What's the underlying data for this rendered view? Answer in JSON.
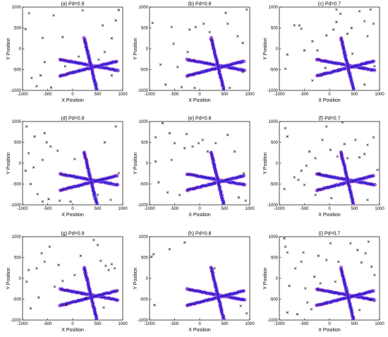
{
  "figure": {
    "panels_layout": "3x3 grid",
    "marker_legend": {
      "clutter": "x",
      "target_track": "o"
    },
    "colors": {
      "clutter": "#000000",
      "estimate": "#1a1acc",
      "estimate_edge": "#4a2bd8",
      "truth": "#cc1111",
      "uncertainty": "#ff66cc"
    }
  },
  "chart_data": [
    {
      "id": "a",
      "type": "scatter",
      "title": "(a) Pd=0.9",
      "xlabel": "X Position",
      "ylabel": "Y Position",
      "xlim": [
        -1000,
        1000
      ],
      "ylim": [
        -1000,
        1000
      ],
      "xticks": [
        "-1000",
        "-500",
        "0",
        "500",
        "1000"
      ],
      "yticks": [
        "1000",
        "500",
        "0",
        "-500",
        "-1000"
      ],
      "clutter": [
        [
          -870,
          850
        ],
        [
          -940,
          470
        ],
        [
          -600,
          260
        ],
        [
          -380,
          800
        ],
        [
          -560,
          -320
        ],
        [
          -200,
          280
        ],
        [
          -720,
          -900
        ],
        [
          -430,
          -930
        ],
        [
          -640,
          -640
        ],
        [
          120,
          -190
        ],
        [
          600,
          560
        ],
        [
          780,
          250
        ],
        [
          860,
          680
        ],
        [
          640,
          -80
        ],
        [
          920,
          930
        ],
        [
          200,
          920
        ],
        [
          520,
          -260
        ],
        [
          780,
          -640
        ],
        [
          -150,
          -420
        ],
        [
          -820,
          -700
        ]
      ]
    },
    {
      "id": "b",
      "type": "scatter",
      "title": "(b) Pd=0.8",
      "xlabel": "X Position",
      "ylabel": "Y Position",
      "xlim": [
        -1000,
        1000
      ],
      "ylim": [
        -1000,
        1000
      ],
      "xticks": [
        "-1000",
        "-500",
        "0",
        "500",
        "1000"
      ],
      "yticks": [
        "1000",
        "500",
        "0",
        "-500",
        "-1000"
      ],
      "clutter": [
        [
          -940,
          620
        ],
        [
          -560,
          520
        ],
        [
          -440,
          -440
        ],
        [
          -200,
          460
        ],
        [
          -80,
          520
        ],
        [
          80,
          600
        ],
        [
          200,
          400
        ],
        [
          520,
          860
        ],
        [
          560,
          600
        ],
        [
          760,
          300
        ],
        [
          940,
          940
        ],
        [
          860,
          140
        ],
        [
          -680,
          -860
        ],
        [
          -360,
          -920
        ],
        [
          -100,
          -940
        ],
        [
          -780,
          -380
        ],
        [
          860,
          -560
        ],
        [
          600,
          -940
        ],
        [
          -240,
          -80
        ],
        [
          -520,
          120
        ]
      ]
    },
    {
      "id": "c",
      "type": "scatter",
      "title": "(c) Pd=0.7",
      "xlabel": "X Position",
      "ylabel": "Y Position",
      "xlim": [
        -1000,
        1000
      ],
      "ylim": [
        -1000,
        1000
      ],
      "xticks": [
        "-1000",
        "-500",
        "0",
        "500",
        "1000"
      ],
      "yticks": [
        "1000",
        "500",
        "0",
        "-500",
        "-1000"
      ],
      "clutter": [
        [
          -880,
          -480
        ],
        [
          -700,
          560
        ],
        [
          -600,
          560
        ],
        [
          -560,
          480
        ],
        [
          -500,
          -40
        ],
        [
          -340,
          180
        ],
        [
          -240,
          -40
        ],
        [
          -80,
          -460
        ],
        [
          -60,
          320
        ],
        [
          80,
          460
        ],
        [
          140,
          640
        ],
        [
          140,
          940
        ],
        [
          220,
          840
        ],
        [
          360,
          360
        ],
        [
          440,
          500
        ],
        [
          600,
          900
        ],
        [
          700,
          660
        ],
        [
          760,
          300
        ],
        [
          880,
          600
        ],
        [
          820,
          940
        ],
        [
          900,
          -420
        ],
        [
          700,
          -860
        ],
        [
          -340,
          -760
        ],
        [
          -840,
          -140
        ],
        [
          460,
          -120
        ]
      ]
    },
    {
      "id": "d",
      "type": "scatter",
      "title": "(d) Pd=0.9",
      "xlabel": "X Position",
      "ylabel": "Y Position",
      "xlim": [
        -1000,
        1000
      ],
      "ylim": [
        -1000,
        1000
      ],
      "xticks": [
        "-1000",
        "-500",
        "0",
        "500",
        "1000"
      ],
      "yticks": [
        "1000",
        "500",
        "0",
        "-500",
        "-1000"
      ],
      "clutter": [
        [
          -920,
          880
        ],
        [
          -760,
          640
        ],
        [
          -560,
          720
        ],
        [
          -520,
          500
        ],
        [
          -440,
          400
        ],
        [
          -600,
          80
        ],
        [
          -780,
          -100
        ],
        [
          -940,
          -180
        ],
        [
          -840,
          -500
        ],
        [
          -700,
          -740
        ],
        [
          -600,
          -920
        ],
        [
          -480,
          -860
        ],
        [
          -260,
          -900
        ],
        [
          -40,
          -920
        ],
        [
          -300,
          300
        ],
        [
          40,
          100
        ],
        [
          640,
          500
        ],
        [
          860,
          880
        ],
        [
          920,
          -240
        ],
        [
          500,
          -760
        ],
        [
          760,
          -880
        ],
        [
          -880,
          240
        ]
      ]
    },
    {
      "id": "e",
      "type": "scatter",
      "title": "(e) Pd=0.8",
      "xlabel": "X Position",
      "ylabel": "Y Position",
      "xlim": [
        -1000,
        1000
      ],
      "ylim": [
        -1000,
        1000
      ],
      "xticks": [
        "-1000",
        "-500",
        "0",
        "500",
        "1000"
      ],
      "yticks": [
        "1000",
        "500",
        "0",
        "-500",
        "-1000"
      ],
      "clutter": [
        [
          -880,
          620
        ],
        [
          -740,
          960
        ],
        [
          -600,
          720
        ],
        [
          -500,
          480
        ],
        [
          -300,
          360
        ],
        [
          -260,
          700
        ],
        [
          -140,
          400
        ],
        [
          -20,
          480
        ],
        [
          60,
          560
        ],
        [
          160,
          280
        ],
        [
          320,
          480
        ],
        [
          560,
          680
        ],
        [
          700,
          280
        ],
        [
          880,
          -240
        ],
        [
          780,
          -820
        ],
        [
          920,
          -900
        ],
        [
          -820,
          -460
        ],
        [
          -640,
          -700
        ],
        [
          -400,
          -760
        ],
        [
          -880,
          40
        ],
        [
          -560,
          80
        ]
      ]
    },
    {
      "id": "f",
      "type": "scatter",
      "title": "(f) Pd=0.7",
      "xlabel": "X Position",
      "ylabel": "Y Position",
      "xlim": [
        -1000,
        1000
      ],
      "ylim": [
        -1000,
        1000
      ],
      "xticks": [
        "-1000",
        "-500",
        "0",
        "500",
        "1000"
      ],
      "yticks": [
        "1000",
        "500",
        "0",
        "-500",
        "-1000"
      ],
      "clutter": [
        [
          -880,
          840
        ],
        [
          -840,
          640
        ],
        [
          -700,
          -340
        ],
        [
          -620,
          -400
        ],
        [
          -560,
          -180
        ],
        [
          -500,
          -520
        ],
        [
          -460,
          -60
        ],
        [
          -400,
          280
        ],
        [
          -280,
          120
        ],
        [
          -200,
          -240
        ],
        [
          -140,
          560
        ],
        [
          -60,
          880
        ],
        [
          20,
          320
        ],
        [
          160,
          160
        ],
        [
          260,
          980
        ],
        [
          300,
          460
        ],
        [
          360,
          120
        ],
        [
          520,
          560
        ],
        [
          600,
          140
        ],
        [
          700,
          220
        ],
        [
          760,
          440
        ],
        [
          880,
          620
        ],
        [
          960,
          -160
        ],
        [
          -900,
          -620
        ],
        [
          -280,
          -760
        ],
        [
          40,
          -840
        ],
        [
          760,
          -880
        ]
      ]
    },
    {
      "id": "g",
      "type": "scatter",
      "title": "(g) Pd=0.9",
      "xlabel": "X Position",
      "ylabel": "Y Position",
      "xlim": [
        -1000,
        1000
      ],
      "ylim": [
        -1000,
        1000
      ],
      "xticks": [
        "-1000",
        "-500",
        "0",
        "500",
        "1000"
      ],
      "yticks": [
        "1000",
        "500",
        "0",
        "-500",
        "-1000"
      ],
      "clutter": [
        [
          -880,
          200
        ],
        [
          -920,
          -80
        ],
        [
          -720,
          240
        ],
        [
          -680,
          -460
        ],
        [
          -620,
          600
        ],
        [
          -560,
          400
        ],
        [
          -460,
          760
        ],
        [
          -360,
          -200
        ],
        [
          -280,
          320
        ],
        [
          -200,
          -60
        ],
        [
          -120,
          -640
        ],
        [
          40,
          80
        ],
        [
          160,
          540
        ],
        [
          260,
          -480
        ],
        [
          420,
          920
        ],
        [
          500,
          800
        ],
        [
          560,
          420
        ],
        [
          660,
          300
        ],
        [
          720,
          200
        ],
        [
          780,
          340
        ],
        [
          840,
          240
        ],
        [
          900,
          -300
        ],
        [
          620,
          -700
        ],
        [
          -840,
          -720
        ]
      ]
    },
    {
      "id": "h",
      "type": "scatter",
      "title": "(h) Pd=0.8",
      "xlabel": "X Position",
      "ylabel": "Y Position",
      "xlim": [
        -1000,
        1000
      ],
      "ylim": [
        -1000,
        1000
      ],
      "xticks": [
        "-1000",
        "-500",
        "0",
        "500",
        "1000"
      ],
      "yticks": [
        "1000",
        "500",
        "0",
        "-500",
        "-1000"
      ],
      "clutter": [
        [
          -960,
          520
        ],
        [
          -920,
          580
        ],
        [
          -600,
          700
        ],
        [
          -300,
          860
        ],
        [
          300,
          240
        ],
        [
          820,
          -660
        ],
        [
          940,
          -840
        ],
        [
          -900,
          -640
        ]
      ]
    },
    {
      "id": "i",
      "type": "scatter",
      "title": "(i) Pd=0.7",
      "xlabel": "X Position",
      "ylabel": "Y Position",
      "xlim": [
        -1000,
        1000
      ],
      "ylim": [
        -1000,
        1000
      ],
      "xticks": [
        "-1000",
        "-500",
        "0",
        "500",
        "1000"
      ],
      "yticks": [
        "1000",
        "500",
        "0",
        "-500",
        "-1000"
      ],
      "clutter": [
        [
          -900,
          960
        ],
        [
          -880,
          760
        ],
        [
          -840,
          620
        ],
        [
          -800,
          -180
        ],
        [
          -680,
          240
        ],
        [
          -560,
          400
        ],
        [
          -520,
          620
        ],
        [
          -480,
          -240
        ],
        [
          -440,
          -580
        ],
        [
          -360,
          -740
        ],
        [
          -300,
          40
        ],
        [
          -220,
          540
        ],
        [
          -180,
          -120
        ],
        [
          -60,
          440
        ],
        [
          20,
          840
        ],
        [
          120,
          -80
        ],
        [
          180,
          400
        ],
        [
          420,
          840
        ],
        [
          560,
          680
        ],
        [
          640,
          380
        ],
        [
          720,
          600
        ],
        [
          780,
          880
        ],
        [
          840,
          280
        ],
        [
          900,
          80
        ],
        [
          820,
          -520
        ],
        [
          600,
          -760
        ],
        [
          -840,
          -820
        ],
        [
          -640,
          -860
        ]
      ]
    }
  ]
}
